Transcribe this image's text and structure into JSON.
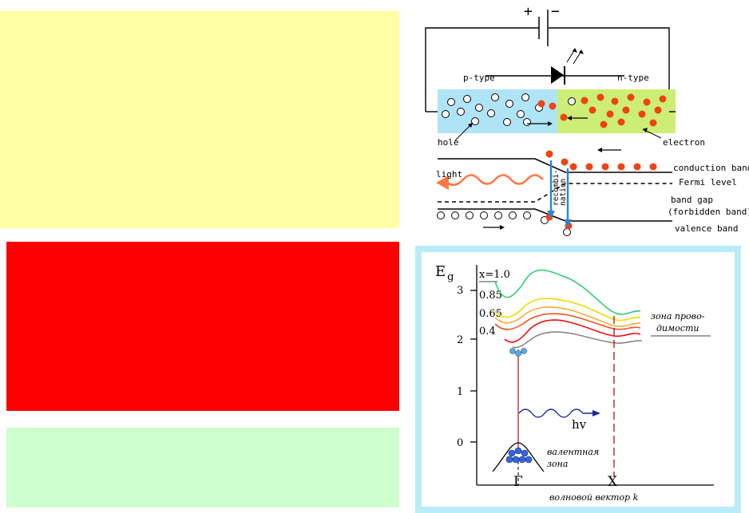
{
  "colors": {
    "yellow_block": "#ffffa3",
    "red_block": "#ff0000",
    "green_block": "#ccffcc",
    "p_region": "#aee4f6",
    "n_region": "#ccee77",
    "electron": "#ee4411",
    "frame": "#b8ecf8",
    "recomb_arrow": "#2b86cc"
  },
  "led": {
    "battery_plus": "+",
    "battery_minus": "−",
    "p_type": "p-type",
    "n_type": "n-type",
    "hole": "hole",
    "electron": "electron",
    "light": "light",
    "conduction_band": "conduction band",
    "fermi_level": "Fermi level",
    "recomb_1": "recombi-",
    "recomb_2": "nation",
    "band_gap_1": "band gap",
    "band_gap_2": "(forbidden band)",
    "valence_band": "valence band"
  },
  "band": {
    "e_label": "E",
    "e_sub": "g",
    "y_ticks": [
      "3",
      "2",
      "1",
      "0"
    ],
    "x_values": [
      "x=1.0",
      "0.85",
      "0.65",
      "0.4"
    ],
    "x_colors": [
      "#33cc77",
      "#eedd00",
      "#ffaa33",
      "#ee5522",
      "#ee1111",
      "#888888"
    ],
    "conduction_label_1": "зона прово-",
    "conduction_label_2": "димости",
    "valence_label_1": "валентная",
    "valence_label_2": "зона",
    "photon": "hv",
    "gamma": "Γ",
    "x_point": "X",
    "axis_label": "волновой вектор k"
  }
}
